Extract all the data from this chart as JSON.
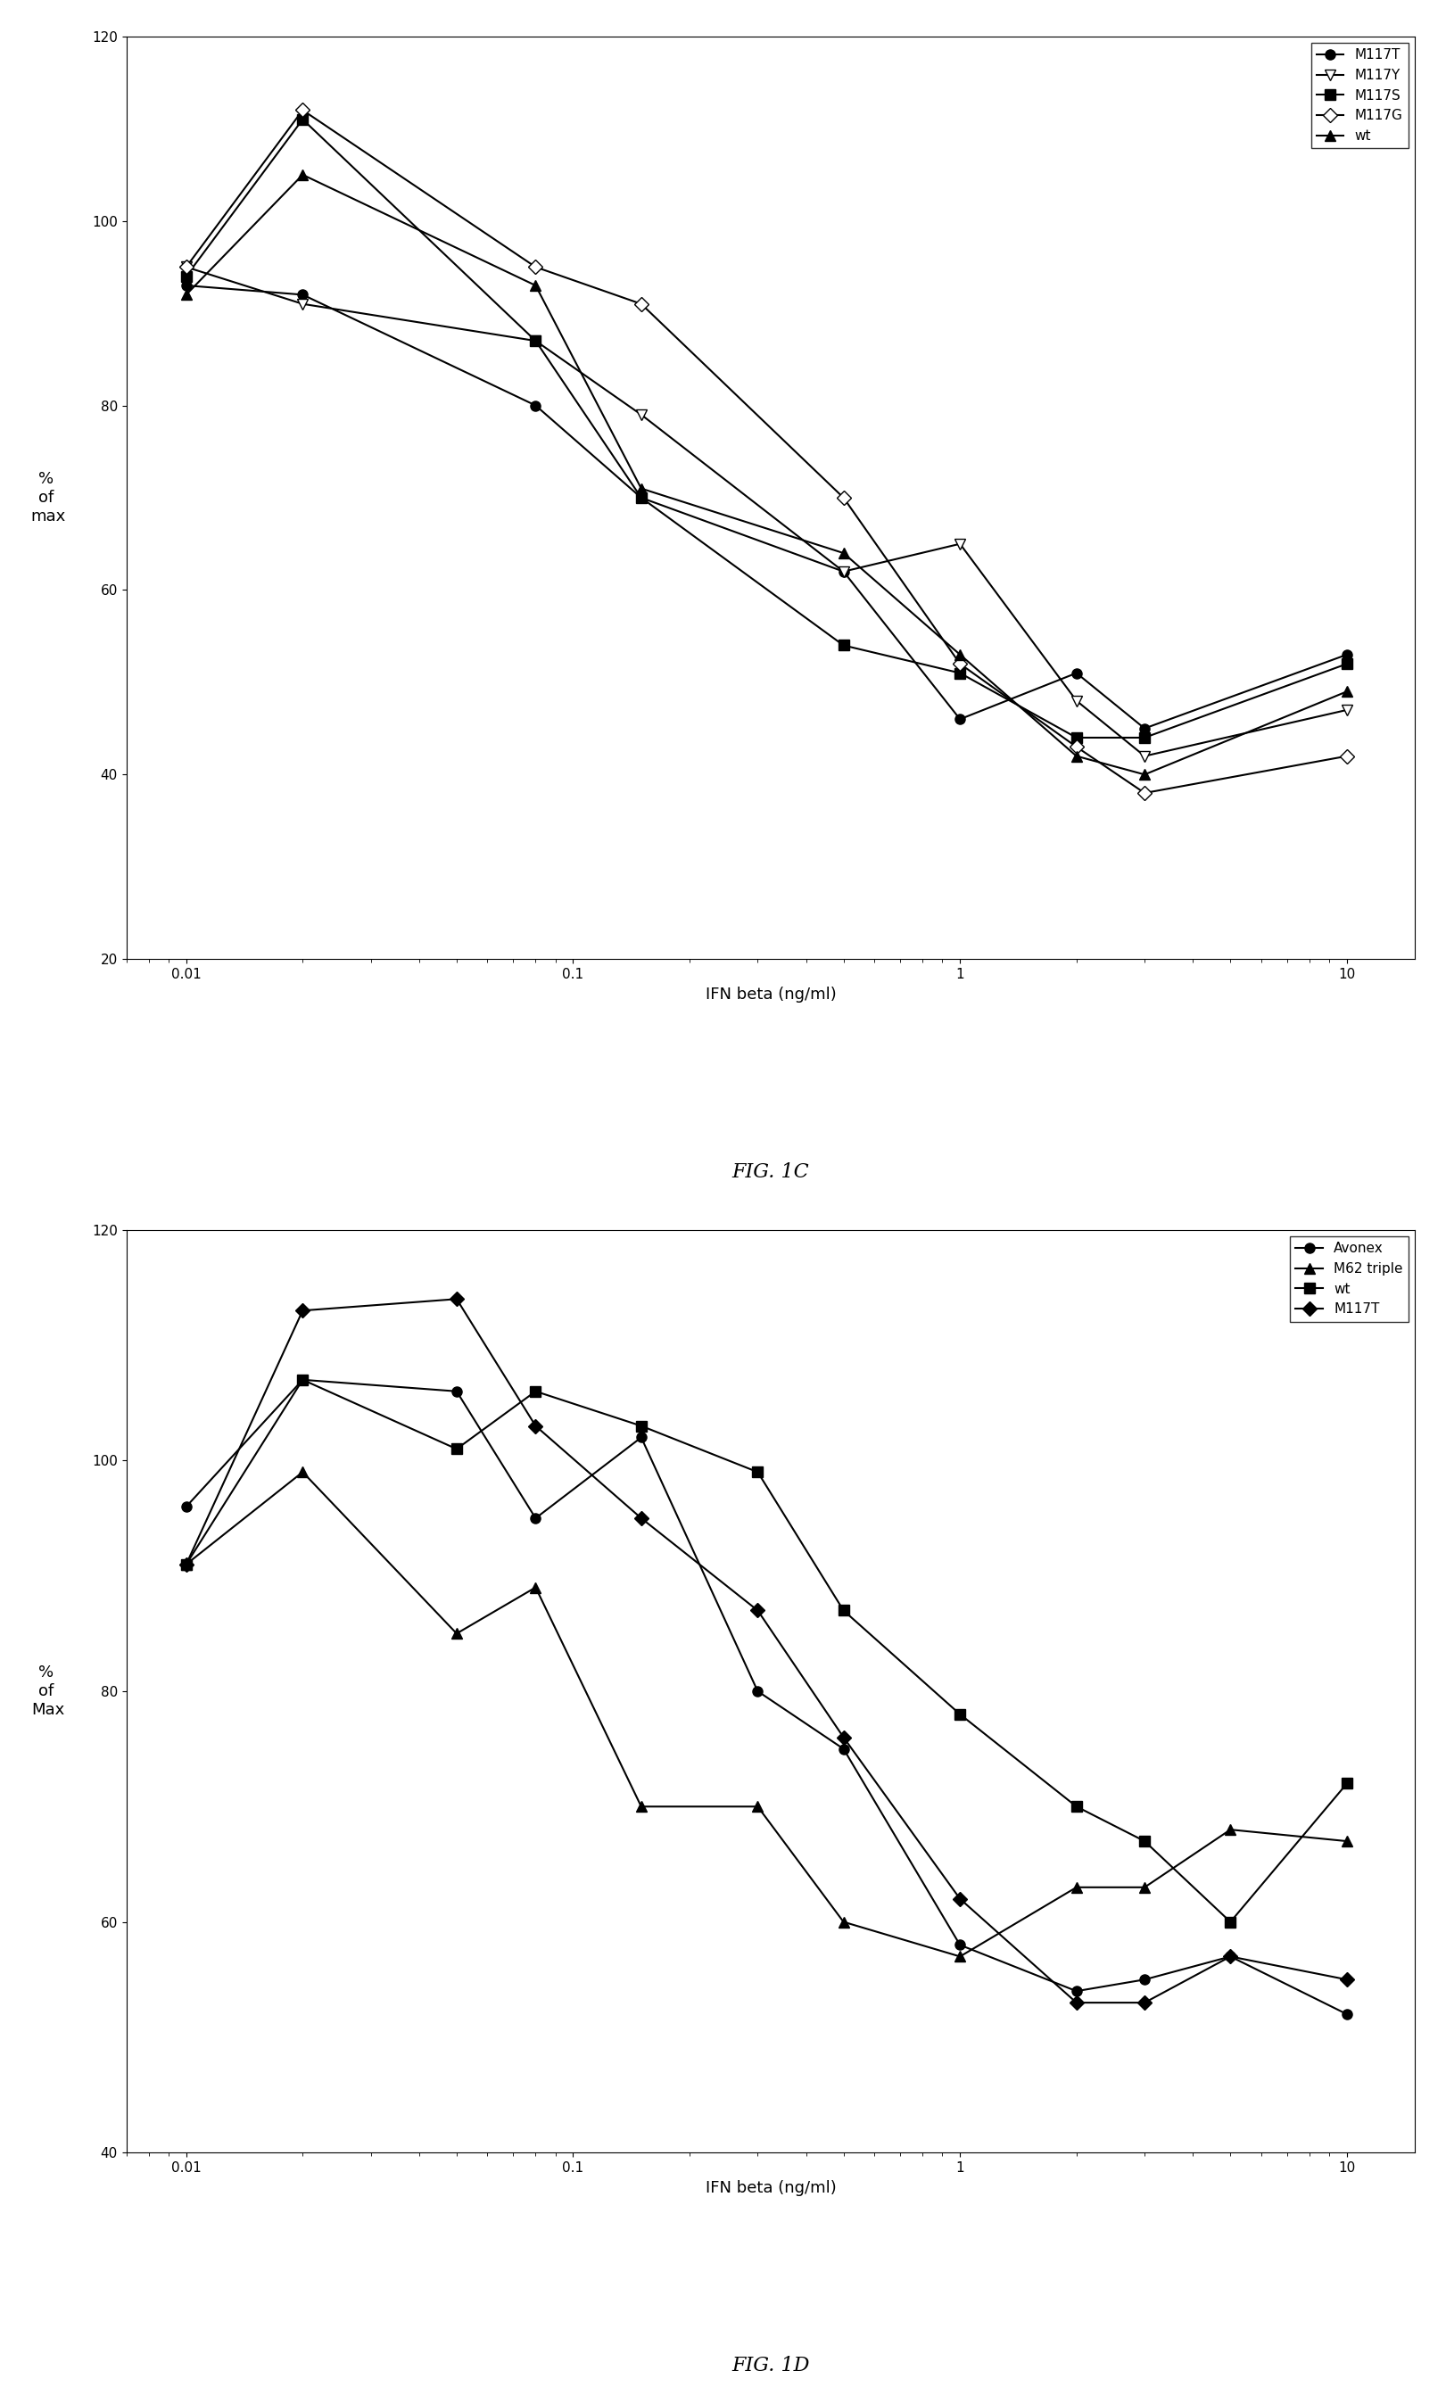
{
  "fig1c": {
    "title": "FIG. 1C",
    "xlabel": "IFN beta (ng/ml)",
    "ylabel": "% \nof \nmax",
    "ylim": [
      20,
      120
    ],
    "yticks": [
      20,
      40,
      60,
      80,
      100,
      120
    ],
    "series": {
      "M117T": {
        "x": [
          0.01,
          0.02,
          0.08,
          0.15,
          0.5,
          1.0,
          2.0,
          3.0,
          10.0
        ],
        "y": [
          93,
          92,
          80,
          70,
          62,
          46,
          51,
          45,
          53
        ],
        "marker": "o",
        "linestyle": "-",
        "color": "black",
        "fillstyle": "full"
      },
      "M117Y": {
        "x": [
          0.01,
          0.02,
          0.08,
          0.15,
          0.5,
          1.0,
          2.0,
          3.0,
          10.0
        ],
        "y": [
          95,
          91,
          87,
          79,
          62,
          65,
          48,
          42,
          47
        ],
        "marker": "v",
        "linestyle": "-",
        "color": "black",
        "fillstyle": "none"
      },
      "M117S": {
        "x": [
          0.01,
          0.02,
          0.08,
          0.15,
          0.5,
          1.0,
          2.0,
          3.0,
          10.0
        ],
        "y": [
          94,
          111,
          87,
          70,
          54,
          51,
          44,
          44,
          52
        ],
        "marker": "s",
        "linestyle": "-",
        "color": "black",
        "fillstyle": "full"
      },
      "M117G": {
        "x": [
          0.01,
          0.02,
          0.08,
          0.15,
          0.5,
          1.0,
          2.0,
          3.0,
          10.0
        ],
        "y": [
          95,
          112,
          95,
          91,
          70,
          52,
          43,
          38,
          42
        ],
        "marker": "D",
        "linestyle": "-",
        "color": "black",
        "fillstyle": "none"
      },
      "wt": {
        "x": [
          0.01,
          0.02,
          0.08,
          0.15,
          0.5,
          1.0,
          2.0,
          3.0,
          10.0
        ],
        "y": [
          92,
          105,
          93,
          71,
          64,
          53,
          42,
          40,
          49
        ],
        "marker": "^",
        "linestyle": "-",
        "color": "black",
        "fillstyle": "full"
      }
    },
    "legend_order": [
      "M117T",
      "M117Y",
      "M117S",
      "M117G",
      "wt"
    ]
  },
  "fig1d": {
    "title": "FIG. 1D",
    "xlabel": "IFN beta (ng/ml)",
    "ylabel": "% \nof \nMax",
    "ylim": [
      40,
      120
    ],
    "yticks": [
      40,
      60,
      80,
      100,
      120
    ],
    "series": {
      "Avonex": {
        "x": [
          0.01,
          0.02,
          0.05,
          0.08,
          0.15,
          0.3,
          0.5,
          1.0,
          2.0,
          3.0,
          5.0,
          10.0
        ],
        "y": [
          96,
          107,
          106,
          95,
          102,
          80,
          75,
          58,
          54,
          55,
          57,
          52
        ],
        "marker": "o",
        "linestyle": "-",
        "color": "black",
        "fillstyle": "full"
      },
      "M62 triple": {
        "x": [
          0.01,
          0.02,
          0.05,
          0.08,
          0.15,
          0.3,
          0.5,
          1.0,
          2.0,
          3.0,
          5.0,
          10.0
        ],
        "y": [
          91,
          99,
          85,
          89,
          70,
          70,
          60,
          57,
          63,
          63,
          68,
          67
        ],
        "marker": "^",
        "linestyle": "-",
        "color": "black",
        "fillstyle": "full"
      },
      "wt": {
        "x": [
          0.01,
          0.02,
          0.05,
          0.08,
          0.15,
          0.3,
          0.5,
          1.0,
          2.0,
          3.0,
          5.0,
          10.0
        ],
        "y": [
          91,
          107,
          101,
          106,
          103,
          99,
          87,
          78,
          70,
          67,
          60,
          72
        ],
        "marker": "s",
        "linestyle": "-",
        "color": "black",
        "fillstyle": "full"
      },
      "M117T": {
        "x": [
          0.01,
          0.02,
          0.05,
          0.08,
          0.15,
          0.3,
          0.5,
          1.0,
          2.0,
          3.0,
          5.0,
          10.0
        ],
        "y": [
          91,
          113,
          114,
          103,
          95,
          87,
          76,
          62,
          53,
          53,
          57,
          55
        ],
        "marker": "D",
        "linestyle": "-",
        "color": "black",
        "fillstyle": "full"
      }
    },
    "legend_order": [
      "Avonex",
      "M62 triple",
      "wt",
      "M117T"
    ]
  }
}
